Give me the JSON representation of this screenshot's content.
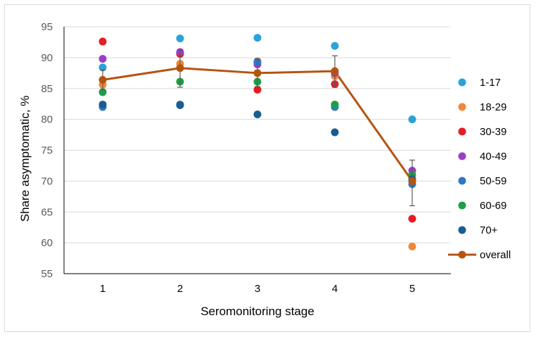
{
  "chart_data": {
    "type": "scatter",
    "title": "",
    "xlabel": "Seromonitoring stage",
    "ylabel": "Share asymptomatic, %",
    "ylim": [
      55,
      95
    ],
    "yticks": [
      55,
      60,
      65,
      70,
      75,
      80,
      85,
      90,
      95
    ],
    "categories": [
      "1",
      "2",
      "3",
      "4",
      "5"
    ],
    "grid": "horizontal",
    "legend_position": "right",
    "series": [
      {
        "name": "1-17",
        "color": "#2aa3d8",
        "values": [
          88.4,
          93.1,
          93.2,
          91.9,
          80.0
        ]
      },
      {
        "name": "18-29",
        "color": "#f0883a",
        "values": [
          85.6,
          89.0,
          89.4,
          87.0,
          59.4
        ]
      },
      {
        "name": "30-39",
        "color": "#e51c23",
        "values": [
          92.6,
          90.6,
          84.8,
          85.7,
          63.9
        ]
      },
      {
        "name": "40-49",
        "color": "#9b3fc4",
        "values": [
          89.8,
          90.9,
          88.9,
          87.5,
          71.7
        ]
      },
      {
        "name": "50-59",
        "color": "#2f78c8",
        "values": [
          82.0,
          82.4,
          89.3,
          82.0,
          69.5
        ]
      },
      {
        "name": "60-69",
        "color": "#1f9e48",
        "values": [
          84.4,
          86.1,
          86.1,
          82.4,
          71.0
        ]
      },
      {
        "name": "70+",
        "color": "#1a5d8f",
        "values": [
          82.4,
          82.3,
          80.8,
          77.9,
          70.3
        ]
      }
    ],
    "overall": {
      "name": "overall",
      "color": "#b5540f",
      "values": [
        86.4,
        88.3,
        87.5,
        87.8,
        70.0
      ]
    },
    "error_bars": [
      {
        "low": 84.8,
        "high": 88.0
      },
      {
        "low": 85.2,
        "high": 91.3
      },
      {
        "low": 85.3,
        "high": 89.8
      },
      {
        "low": 85.2,
        "high": 90.3
      },
      {
        "low": 66.0,
        "high": 73.4
      }
    ]
  }
}
